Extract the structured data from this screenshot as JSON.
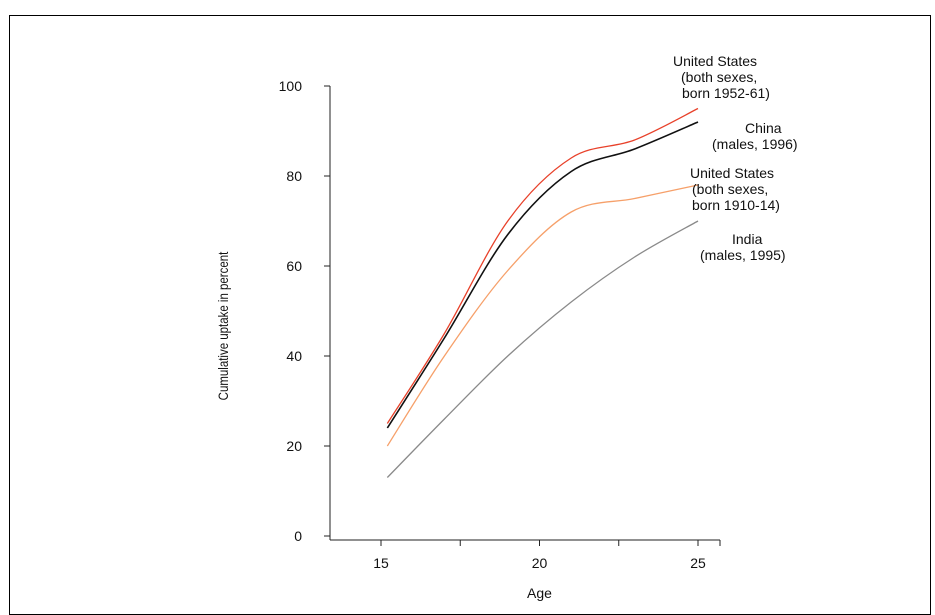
{
  "chart_data": {
    "type": "line",
    "title": "",
    "xlabel": "Age",
    "ylabel": "Cumulative uptake in percent",
    "xlim": [
      15,
      25
    ],
    "ylim": [
      0,
      100
    ],
    "x_ticks": [
      15,
      20,
      25
    ],
    "y_ticks": [
      0,
      20,
      40,
      60,
      80,
      100
    ],
    "grid": false,
    "legend_placement": "right, labels at line ends",
    "series": [
      {
        "name": "United States (both sexes, born 1952-61)",
        "label_lines": [
          "United States",
          "(both sexes,",
          "born 1952-61)"
        ],
        "color": "#e8412a",
        "x": [
          15.2,
          17,
          19,
          21,
          23,
          25
        ],
        "y": [
          25,
          45,
          70,
          84,
          88,
          95
        ]
      },
      {
        "name": "China (males, 1996)",
        "label_lines": [
          "China",
          "(males, 1996)"
        ],
        "color": "#111111",
        "x": [
          15.2,
          17,
          19,
          21,
          23,
          25
        ],
        "y": [
          24,
          44,
          67,
          81,
          86,
          92
        ]
      },
      {
        "name": "United States (both sexes, born 1910-14)",
        "label_lines": [
          "United States",
          "(both sexes,",
          "born 1910-14)"
        ],
        "color": "#f6a06a",
        "x": [
          15.2,
          17,
          19,
          21,
          23,
          25
        ],
        "y": [
          20,
          40,
          59,
          72,
          75,
          78
        ]
      },
      {
        "name": "India (males, 1995)",
        "label_lines": [
          "India",
          "(males, 1995)"
        ],
        "color": "#8a8a8a",
        "x": [
          15.2,
          17,
          19,
          21,
          23,
          25
        ],
        "y": [
          13,
          26,
          40,
          52,
          62,
          70
        ]
      }
    ]
  }
}
